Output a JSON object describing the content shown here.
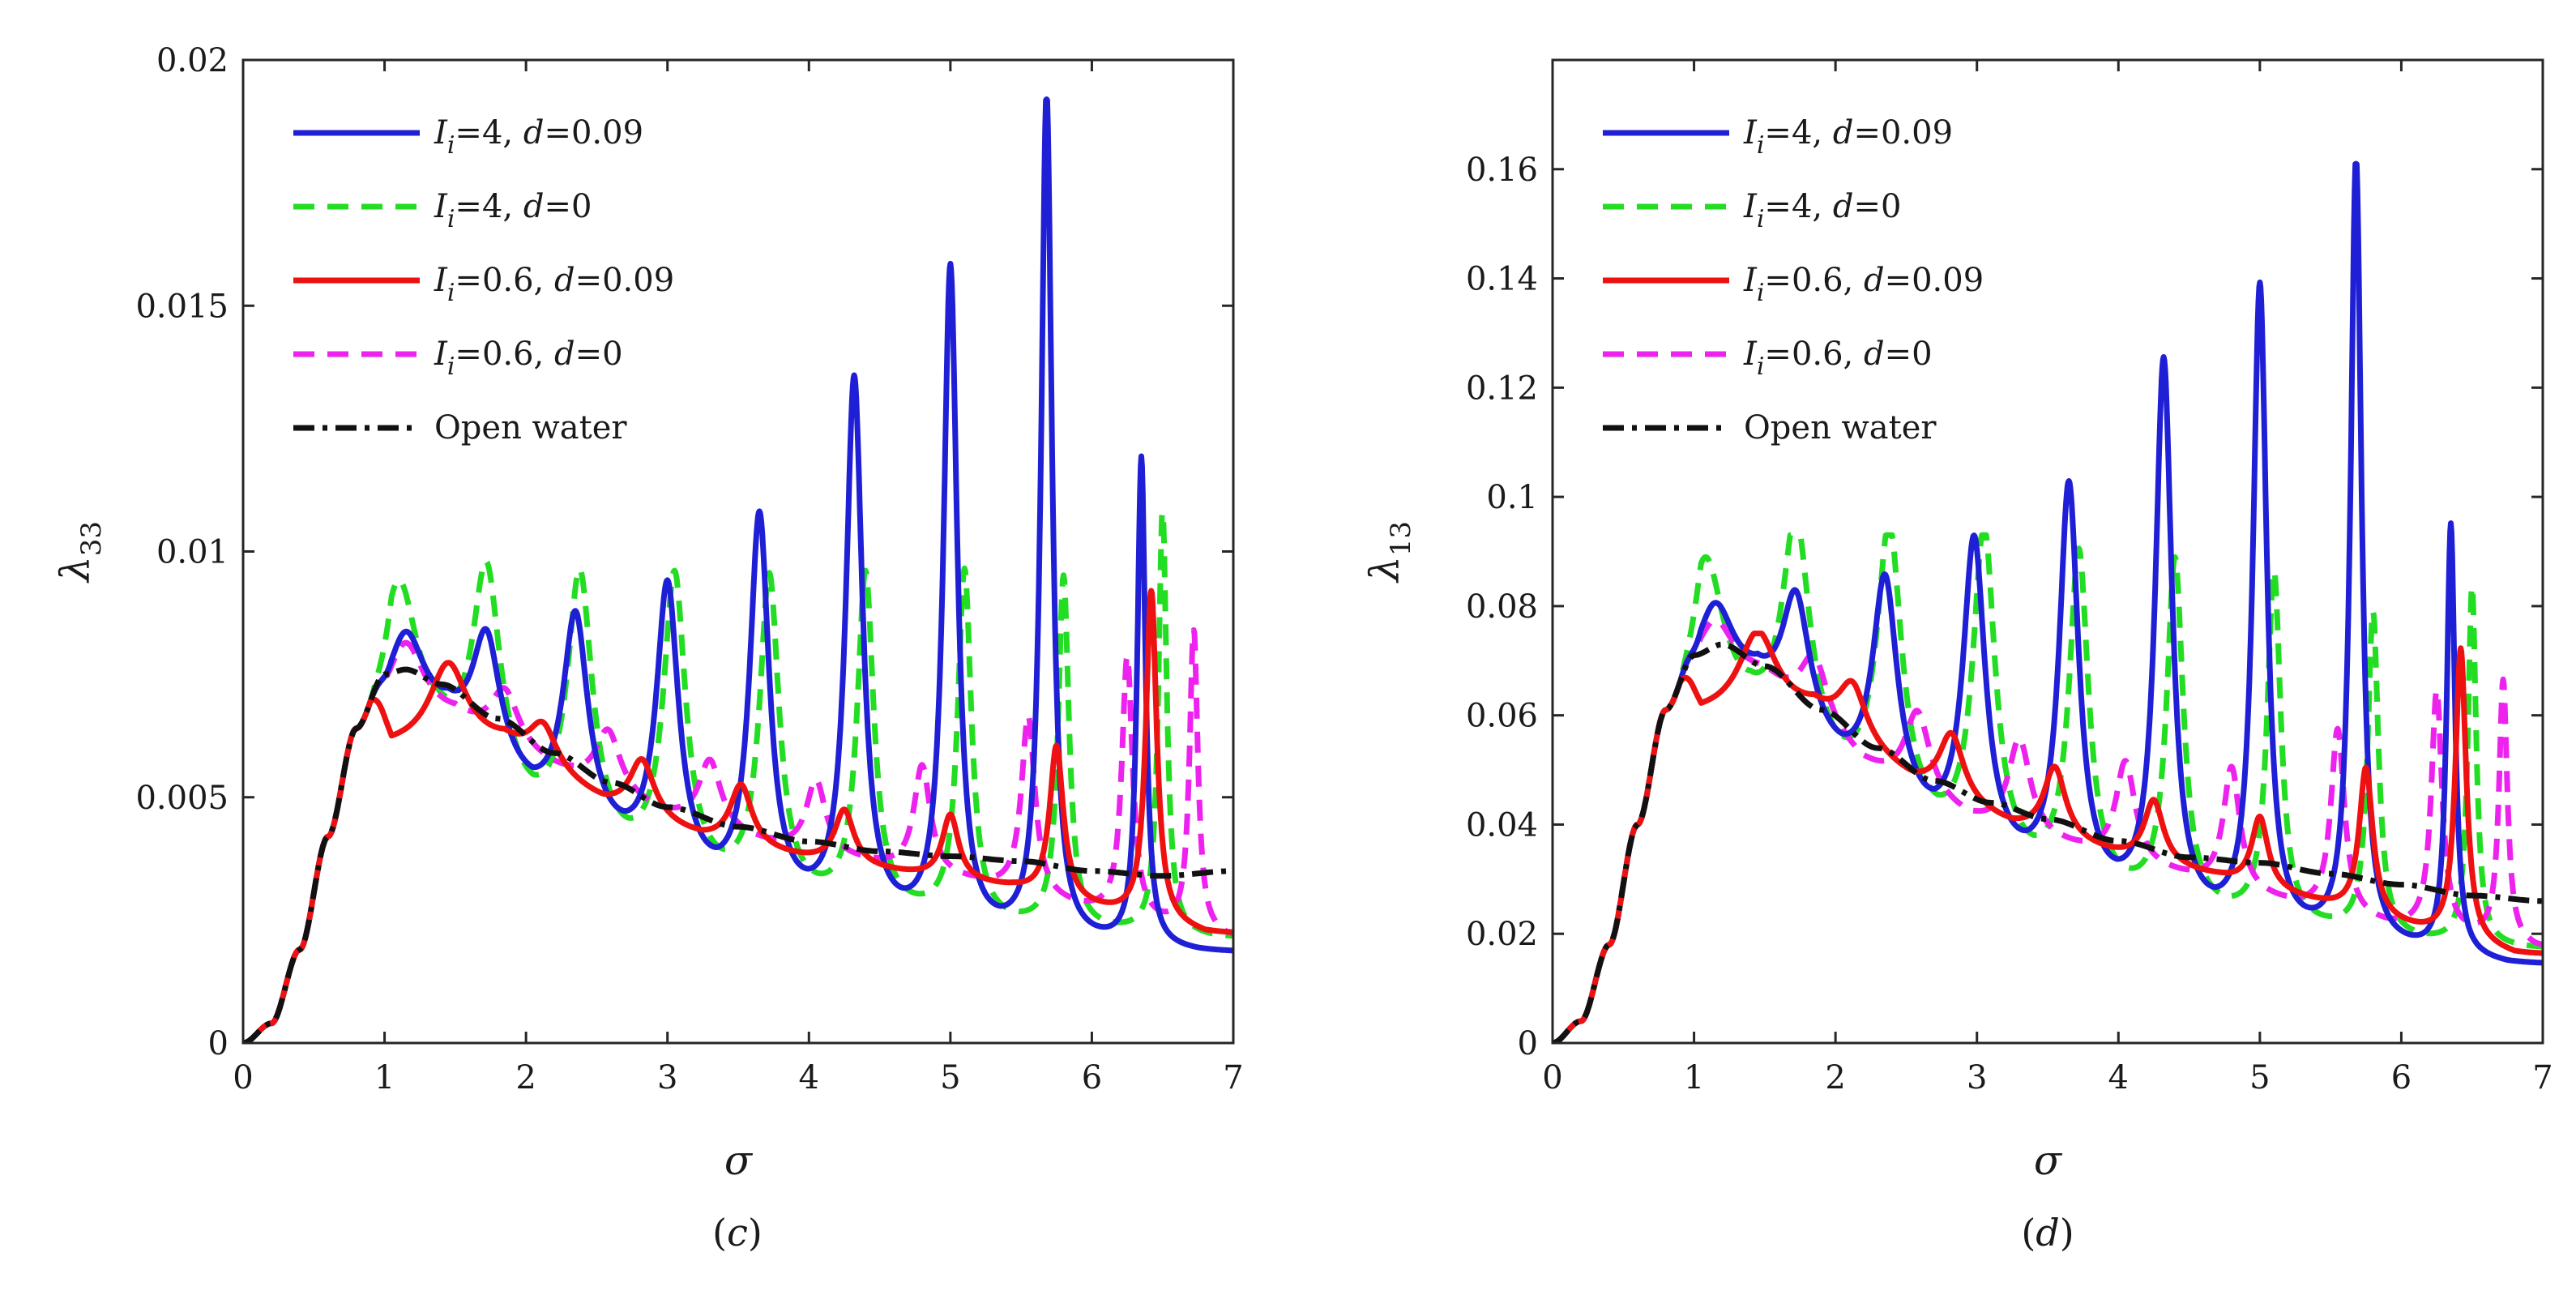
{
  "chart_data": [
    {
      "type": "line",
      "panel": "(c)",
      "panel_label": {
        "open": "(",
        "letter": "c",
        "close": ")"
      },
      "xlabel": "σ",
      "ylabel": {
        "main": "λ",
        "sub": "33"
      },
      "xlim": [
        0,
        7
      ],
      "ylim": [
        0,
        0.02
      ],
      "xticks": [
        "0",
        "1",
        "2",
        "3",
        "4",
        "5",
        "6",
        "7"
      ],
      "yticks": [
        "0",
        "0.005",
        "0.01",
        "0.015",
        "0.02"
      ],
      "grid": false,
      "legend_position": "top-left",
      "series": [
        {
          "name": "I_i=4, d=0.09",
          "label": {
            "sym": "I",
            "sub": "i",
            "eq1": "=4, ",
            "dsym": "d",
            "eq2": "=0.09"
          },
          "color": "#1f1fd6",
          "dash": "solid",
          "resonances": [
            [
              1.15,
              0.0082
            ],
            [
              1.72,
              0.0081
            ],
            [
              2.35,
              0.0085
            ],
            [
              3.0,
              0.0091
            ],
            [
              3.65,
              0.0105
            ],
            [
              4.32,
              0.0133
            ],
            [
              5.0,
              0.0156
            ],
            [
              5.68,
              0.0192
            ],
            [
              6.35,
              0.0118
            ]
          ],
          "troughs": [
            [
              1.45,
              0.0063
            ],
            [
              2.05,
              0.0047
            ],
            [
              2.7,
              0.0037
            ],
            [
              3.35,
              0.0029
            ],
            [
              4.0,
              0.0025
            ],
            [
              4.68,
              0.0022
            ],
            [
              5.35,
              0.002
            ],
            [
              6.05,
              0.0019
            ],
            [
              6.75,
              0.0018
            ]
          ]
        },
        {
          "name": "I_i=4, d=0",
          "label": {
            "sym": "I",
            "sub": "i",
            "eq1": "=4, ",
            "dsym": "d",
            "eq2": "=0"
          },
          "color": "#22dd22",
          "dash": "dashed",
          "resonances": [
            [
              1.1,
              0.0092
            ],
            [
              1.72,
              0.0094
            ],
            [
              2.38,
              0.0093
            ],
            [
              3.05,
              0.0093
            ],
            [
              3.72,
              0.0093
            ],
            [
              4.4,
              0.0094
            ],
            [
              5.1,
              0.0095
            ],
            [
              5.8,
              0.0094
            ],
            [
              6.5,
              0.0108
            ]
          ],
          "troughs": [
            [
              1.38,
              0.0058
            ],
            [
              2.05,
              0.0043
            ],
            [
              2.72,
              0.0035
            ],
            [
              3.4,
              0.003
            ],
            [
              4.08,
              0.0027
            ],
            [
              4.75,
              0.0025
            ],
            [
              5.45,
              0.0023
            ],
            [
              6.15,
              0.0022
            ],
            [
              6.85,
              0.0021
            ]
          ]
        },
        {
          "name": "I_i=0.6, d=0.09",
          "label": {
            "sym": "I",
            "sub": "i",
            "eq1": "=0.6, ",
            "dsym": "d",
            "eq2": "=0.09"
          },
          "color": "#ee1111",
          "dash": "solid",
          "resonances": [
            [
              1.45,
              0.0077
            ],
            [
              2.12,
              0.0064
            ],
            [
              2.82,
              0.0057
            ],
            [
              3.52,
              0.0052
            ],
            [
              4.25,
              0.0047
            ],
            [
              5.0,
              0.0046
            ],
            [
              5.75,
              0.006
            ],
            [
              6.42,
              0.0092
            ]
          ],
          "troughs": [
            [
              1.85,
              0.006
            ],
            [
              2.55,
              0.0048
            ],
            [
              3.25,
              0.0041
            ],
            [
              3.98,
              0.0037
            ],
            [
              4.7,
              0.0034
            ],
            [
              5.45,
              0.0031
            ],
            [
              6.15,
              0.0026
            ],
            [
              6.8,
              0.0022
            ]
          ]
        },
        {
          "name": "I_i=0.6, d=0",
          "label": {
            "sym": "I",
            "sub": "i",
            "eq1": "=0.6, ",
            "dsym": "d",
            "eq2": "=0"
          },
          "color": "#ee22ee",
          "dash": "dashed",
          "resonances": [
            [
              1.15,
              0.0081
            ],
            [
              1.85,
              0.0071
            ],
            [
              2.58,
              0.0063
            ],
            [
              3.3,
              0.0057
            ],
            [
              4.05,
              0.0053
            ],
            [
              4.8,
              0.0056
            ],
            [
              5.55,
              0.0066
            ],
            [
              6.25,
              0.0078
            ],
            [
              6.72,
              0.0084
            ]
          ],
          "troughs": [
            [
              1.5,
              0.0065
            ],
            [
              2.2,
              0.0055
            ],
            [
              2.95,
              0.0046
            ],
            [
              3.7,
              0.004
            ],
            [
              4.45,
              0.0036
            ],
            [
              5.2,
              0.0032
            ],
            [
              5.9,
              0.0027
            ],
            [
              6.55,
              0.0023
            ],
            [
              6.95,
              0.0021
            ]
          ]
        },
        {
          "name": "Open water",
          "label": {
            "text": "Open water"
          },
          "color": "#111111",
          "dash": "dashdot",
          "points": [
            [
              0,
              0
            ],
            [
              0.2,
              0.0004
            ],
            [
              0.4,
              0.0019
            ],
            [
              0.6,
              0.0042
            ],
            [
              0.8,
              0.0064
            ],
            [
              1.0,
              0.0075
            ],
            [
              1.15,
              0.0076
            ],
            [
              1.4,
              0.0073
            ],
            [
              1.8,
              0.0066
            ],
            [
              2.2,
              0.0059
            ],
            [
              2.6,
              0.0053
            ],
            [
              3.0,
              0.0048
            ],
            [
              3.5,
              0.0044
            ],
            [
              4.0,
              0.0041
            ],
            [
              4.5,
              0.0039
            ],
            [
              5.0,
              0.0038
            ],
            [
              5.5,
              0.0037
            ],
            [
              6.0,
              0.0035
            ],
            [
              6.5,
              0.0034
            ],
            [
              7.0,
              0.0035
            ]
          ]
        }
      ]
    },
    {
      "type": "line",
      "panel": "(d)",
      "panel_label": {
        "open": "(",
        "letter": "d",
        "close": ")"
      },
      "xlabel": "σ",
      "ylabel": {
        "main": "λ",
        "sub": "13"
      },
      "xlim": [
        0,
        7
      ],
      "ylim": [
        0,
        0.18
      ],
      "xticks": [
        "0",
        "1",
        "2",
        "3",
        "4",
        "5",
        "6",
        "7"
      ],
      "yticks": [
        "0",
        "0.02",
        "0.04",
        "0.06",
        "0.08",
        "0.1",
        "0.12",
        "0.14",
        "0.16"
      ],
      "grid": false,
      "legend_position": "top-left",
      "series": [
        {
          "name": "I_i=4, d=0.09",
          "label": {
            "sym": "I",
            "sub": "i",
            "eq1": "=4, ",
            "dsym": "d",
            "eq2": "=0.09"
          },
          "color": "#1f1fd6",
          "dash": "solid",
          "resonances": [
            [
              1.15,
              0.079
            ],
            [
              1.72,
              0.08
            ],
            [
              2.35,
              0.083
            ],
            [
              2.98,
              0.09
            ],
            [
              3.65,
              0.1
            ],
            [
              4.32,
              0.123
            ],
            [
              5.0,
              0.137
            ],
            [
              5.68,
              0.161
            ],
            [
              6.35,
              0.094
            ]
          ],
          "troughs": [
            [
              1.45,
              0.063
            ],
            [
              2.05,
              0.048
            ],
            [
              2.7,
              0.036
            ],
            [
              3.35,
              0.029
            ],
            [
              4.0,
              0.024
            ],
            [
              4.68,
              0.02
            ],
            [
              5.35,
              0.018
            ],
            [
              6.05,
              0.016
            ],
            [
              6.75,
              0.014
            ]
          ]
        },
        {
          "name": "I_i=4, d=0",
          "label": {
            "sym": "I",
            "sub": "i",
            "eq1": "=4, ",
            "dsym": "d",
            "eq2": "=0"
          },
          "color": "#22dd22",
          "dash": "dashed",
          "resonances": [
            [
              1.08,
              0.087
            ],
            [
              1.72,
              0.093
            ],
            [
              2.38,
              0.092
            ],
            [
              3.05,
              0.092
            ],
            [
              3.72,
              0.088
            ],
            [
              4.4,
              0.087
            ],
            [
              5.1,
              0.085
            ],
            [
              5.8,
              0.078
            ],
            [
              6.5,
              0.083
            ]
          ],
          "troughs": [
            [
              1.4,
              0.056
            ],
            [
              2.05,
              0.045
            ],
            [
              2.72,
              0.035
            ],
            [
              3.4,
              0.029
            ],
            [
              4.08,
              0.025
            ],
            [
              4.75,
              0.022
            ],
            [
              5.45,
              0.02
            ],
            [
              6.15,
              0.018
            ],
            [
              6.85,
              0.017
            ]
          ]
        },
        {
          "name": "I_i=0.6, d=0.09",
          "label": {
            "sym": "I",
            "sub": "i",
            "eq1": "=0.6, ",
            "dsym": "d",
            "eq2": "=0.09"
          },
          "color": "#ee1111",
          "dash": "solid",
          "resonances": [
            [
              1.45,
              0.075
            ],
            [
              2.12,
              0.065
            ],
            [
              2.82,
              0.056
            ],
            [
              3.55,
              0.05
            ],
            [
              4.25,
              0.044
            ],
            [
              5.0,
              0.041
            ],
            [
              5.75,
              0.05
            ],
            [
              6.42,
              0.072
            ]
          ],
          "troughs": [
            [
              1.85,
              0.06
            ],
            [
              2.55,
              0.047
            ],
            [
              3.25,
              0.039
            ],
            [
              3.98,
              0.034
            ],
            [
              4.7,
              0.03
            ],
            [
              5.45,
              0.025
            ],
            [
              6.15,
              0.02
            ],
            [
              6.8,
              0.016
            ]
          ]
        },
        {
          "name": "I_i=0.6, d=0",
          "label": {
            "sym": "I",
            "sub": "i",
            "eq1": "=0.6, ",
            "dsym": "d",
            "eq2": "=0"
          },
          "color": "#ee22ee",
          "dash": "dashed",
          "resonances": [
            [
              1.15,
              0.077
            ],
            [
              1.85,
              0.07
            ],
            [
              2.58,
              0.06
            ],
            [
              3.3,
              0.055
            ],
            [
              4.05,
              0.051
            ],
            [
              4.8,
              0.05
            ],
            [
              5.55,
              0.057
            ],
            [
              6.25,
              0.064
            ],
            [
              6.72,
              0.066
            ]
          ],
          "troughs": [
            [
              1.5,
              0.066
            ],
            [
              2.2,
              0.05
            ],
            [
              2.95,
              0.04
            ],
            [
              3.7,
              0.035
            ],
            [
              4.45,
              0.03
            ],
            [
              5.2,
              0.025
            ],
            [
              5.9,
              0.021
            ],
            [
              6.55,
              0.019
            ],
            [
              6.95,
              0.017
            ]
          ]
        },
        {
          "name": "Open water",
          "label": {
            "text": "Open water"
          },
          "color": "#111111",
          "dash": "dashdot",
          "points": [
            [
              0,
              0
            ],
            [
              0.2,
              0.004
            ],
            [
              0.4,
              0.018
            ],
            [
              0.6,
              0.04
            ],
            [
              0.8,
              0.061
            ],
            [
              1.0,
              0.071
            ],
            [
              1.2,
              0.073
            ],
            [
              1.5,
              0.069
            ],
            [
              1.9,
              0.061
            ],
            [
              2.3,
              0.054
            ],
            [
              2.7,
              0.048
            ],
            [
              3.1,
              0.044
            ],
            [
              3.5,
              0.041
            ],
            [
              4.0,
              0.037
            ],
            [
              4.5,
              0.034
            ],
            [
              5.0,
              0.033
            ],
            [
              5.5,
              0.031
            ],
            [
              6.0,
              0.029
            ],
            [
              6.5,
              0.027
            ],
            [
              7.0,
              0.026
            ]
          ]
        }
      ]
    }
  ]
}
